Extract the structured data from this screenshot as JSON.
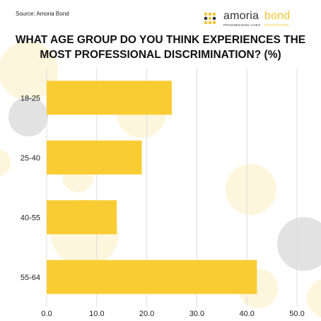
{
  "source": "Source: Amoria Bond",
  "logo": {
    "word1": "amoria",
    "word2": "bond",
    "tagline1": "PROGRESSING LIVES",
    "tagline2": "EVERYWHERE"
  },
  "colors": {
    "bar": "#f9cc33",
    "grid": "#dddddd",
    "text": "#222222",
    "decor_yellow": "#fdf6dc",
    "decor_gray": "#e2e2e2"
  },
  "chart_data": {
    "type": "bar",
    "orientation": "horizontal",
    "title": "WHAT AGE GROUP DO YOU THINK EXPERIENCES THE MOST PROFESSIONAL DISCRIMINATION? (%)",
    "categories": [
      "18-25",
      "25-40",
      "40-55",
      "55-64"
    ],
    "values": [
      25,
      19,
      14,
      42
    ],
    "xlim": [
      0,
      50
    ],
    "xticks": [
      "0.0",
      "10.0",
      "20.0",
      "30.0",
      "40.0",
      "50.0"
    ],
    "grid": "vertical"
  }
}
